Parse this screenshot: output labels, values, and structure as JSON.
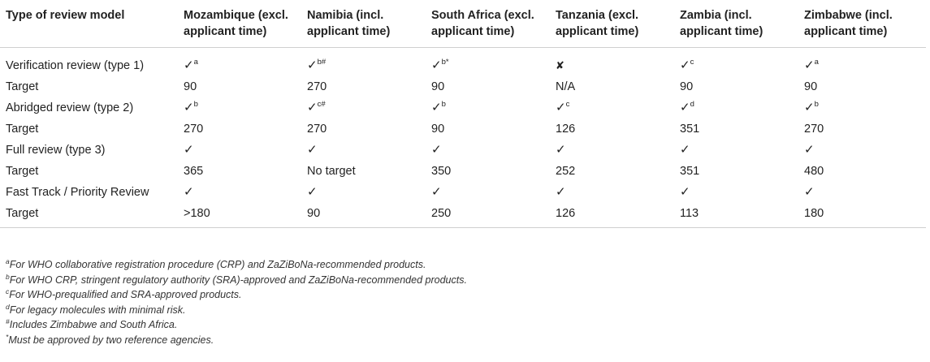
{
  "headers": [
    "Type of review model",
    "Mozambique (excl. applicant time)",
    "Namibia (incl. applicant time)",
    "South Africa (excl. applicant time)",
    "Tanzania (excl. applicant time)",
    "Zambia (incl. applicant time)",
    "Zimbabwe (incl. applicant time)"
  ],
  "rows": [
    {
      "label": "Verification review (type 1)",
      "cells": [
        {
          "mark": "✓",
          "sup": "a"
        },
        {
          "mark": "✓",
          "sup": "b#"
        },
        {
          "mark": "✓",
          "sup": "b*"
        },
        {
          "mark": "✘",
          "sup": ""
        },
        {
          "mark": "✓",
          "sup": "c"
        },
        {
          "mark": "✓",
          "sup": "a"
        }
      ]
    },
    {
      "label": "Target",
      "cells": [
        {
          "text": "90"
        },
        {
          "text": "270"
        },
        {
          "text": "90"
        },
        {
          "text": "N/A"
        },
        {
          "text": "90"
        },
        {
          "text": "90"
        }
      ]
    },
    {
      "label": "Abridged review (type 2)",
      "cells": [
        {
          "mark": "✓",
          "sup": "b"
        },
        {
          "mark": "✓",
          "sup": "c#"
        },
        {
          "mark": "✓",
          "sup": "b"
        },
        {
          "mark": "✓",
          "sup": "c"
        },
        {
          "mark": "✓",
          "sup": "d"
        },
        {
          "mark": "✓",
          "sup": "b"
        }
      ]
    },
    {
      "label": "Target",
      "cells": [
        {
          "text": "270"
        },
        {
          "text": "270"
        },
        {
          "text": "90"
        },
        {
          "text": "126"
        },
        {
          "text": "351"
        },
        {
          "text": "270"
        }
      ]
    },
    {
      "label": "Full review (type 3)",
      "cells": [
        {
          "mark": "✓",
          "sup": ""
        },
        {
          "mark": "✓",
          "sup": ""
        },
        {
          "mark": "✓",
          "sup": ""
        },
        {
          "mark": "✓",
          "sup": ""
        },
        {
          "mark": "✓",
          "sup": ""
        },
        {
          "mark": "✓",
          "sup": ""
        }
      ]
    },
    {
      "label": "Target",
      "cells": [
        {
          "text": "365"
        },
        {
          "text": "No target"
        },
        {
          "text": "350"
        },
        {
          "text": "252"
        },
        {
          "text": "351"
        },
        {
          "text": "480"
        }
      ]
    },
    {
      "label": "Fast Track / Priority Review",
      "cells": [
        {
          "mark": "✓",
          "sup": ""
        },
        {
          "mark": "✓",
          "sup": ""
        },
        {
          "mark": "✓",
          "sup": ""
        },
        {
          "mark": "✓",
          "sup": ""
        },
        {
          "mark": "✓",
          "sup": ""
        },
        {
          "mark": "✓",
          "sup": ""
        }
      ]
    },
    {
      "label": "Target",
      "cells": [
        {
          "text": ">180"
        },
        {
          "text": "90"
        },
        {
          "text": "250"
        },
        {
          "text": "126"
        },
        {
          "text": "113"
        },
        {
          "text": "180"
        }
      ]
    }
  ],
  "footnotes": [
    {
      "sup": "a",
      "text": "For WHO collaborative registration procedure (CRP) and ZaZiBoNa-recommended products."
    },
    {
      "sup": "b",
      "text": "For WHO CRP, stringent regulatory authority (SRA)-approved and ZaZiBoNa-recommended products."
    },
    {
      "sup": "c",
      "text": "For WHO-prequalified and SRA-approved products."
    },
    {
      "sup": "d",
      "text": "For legacy molecules with minimal risk."
    },
    {
      "sup": "#",
      "text": "Includes Zimbabwe and South Africa."
    },
    {
      "sup": "*",
      "text": "Must be approved by two reference agencies."
    }
  ]
}
